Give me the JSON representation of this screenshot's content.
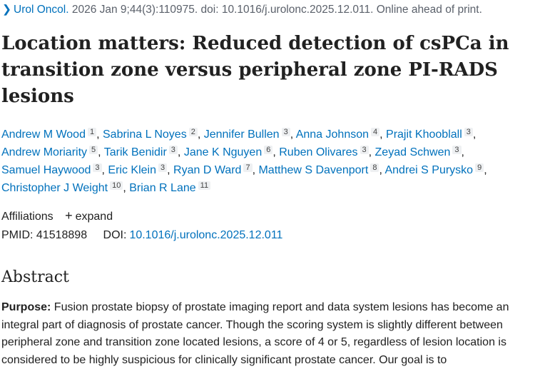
{
  "citation": {
    "journal": "Urol Oncol.",
    "details": " 2026 Jan 9;44(3):110975. doi: 10.1016/j.urolonc.2025.12.011. Online ahead of print."
  },
  "title_lines": [
    "Location matters: Reduced detection of csPCa in",
    "transition zone versus peripheral zone PI-RADS",
    "lesions"
  ],
  "authors": {
    "lines": [
      [
        {
          "name": "Andrew M Wood",
          "aff": "1"
        },
        {
          "name": "Sabrina L Noyes",
          "aff": "2"
        },
        {
          "name": "Jennifer Bullen",
          "aff": "3"
        },
        {
          "name": "Anna Johnson",
          "aff": "4"
        },
        {
          "name": "Prajit Khooblall",
          "aff": "3"
        }
      ],
      [
        {
          "name": "Andrew Moriarity",
          "aff": "5"
        },
        {
          "name": "Tarik Benidir",
          "aff": "3"
        },
        {
          "name": "Jane K Nguyen",
          "aff": "6"
        },
        {
          "name": "Ruben Olivares",
          "aff": "3"
        },
        {
          "name": "Zeyad Schwen",
          "aff": "3"
        }
      ],
      [
        {
          "name": "Samuel Haywood",
          "aff": "3"
        },
        {
          "name": "Eric Klein",
          "aff": "3"
        },
        {
          "name": "Ryan D Ward",
          "aff": "7"
        },
        {
          "name": "Matthew S Davenport",
          "aff": "8"
        },
        {
          "name": "Andrei S Purysko",
          "aff": "9"
        }
      ],
      [
        {
          "name": "Christopher J Weight",
          "aff": "10"
        },
        {
          "name": "Brian R Lane",
          "aff": "11"
        }
      ]
    ]
  },
  "affiliations": {
    "label": "Affiliations",
    "expand_label": "expand"
  },
  "ids": {
    "pmid_label": "PMID:",
    "pmid": "41518898",
    "doi_label": "DOI:",
    "doi": "10.1016/j.urolonc.2025.12.011"
  },
  "abstract": {
    "heading": "Abstract",
    "purpose_label": "Purpose:",
    "lines": [
      " Fusion prostate biopsy of prostate imaging report and data system lesions has become an",
      "integral part of diagnosis of prostate cancer. Though the scoring system is slightly different between",
      "peripheral zone and transition zone located lesions, a score of 4 or 5, regardless of lesion location is",
      "considered to be highly suspicious for clinically significant prostate cancer. Our goal is to"
    ]
  }
}
